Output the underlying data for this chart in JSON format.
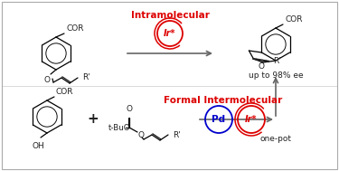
{
  "background_color": "#ffffff",
  "top_label": "Intramolecular",
  "bottom_label": "Formal Intermolecular",
  "top_ee_label": "up to 98% ee",
  "bottom_onepot_label": "one-pot",
  "ir_label": "Ir*",
  "pd_label": "Pd",
  "plus_sign": "+",
  "tbu_label": "t-BuO",
  "cor_label": "COR",
  "oh_label": "OH",
  "rprime_label": "R'",
  "o_label": "O",
  "red_color": "#dd0000",
  "blue_color": "#0000cc",
  "black_color": "#222222",
  "arrow_color": "#666666"
}
